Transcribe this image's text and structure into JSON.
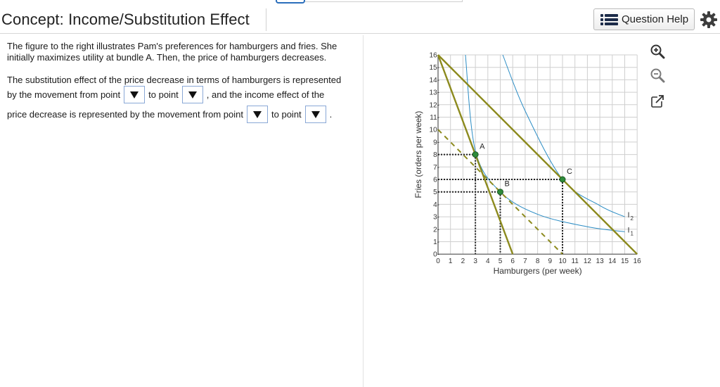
{
  "header": {
    "title": "Concept: Income/Substitution Effect",
    "help_label": "Question Help"
  },
  "icons": {
    "help": "list-icon",
    "settings": "gear-icon",
    "zoom_in": "zoom-in-icon",
    "zoom_out": "zoom-out-icon",
    "popout": "popout-icon"
  },
  "question": {
    "intro": "The figure to the right illustrates Pam's preferences for hamburgers and fries. She initially maximizes utility at bundle A. Then, the price of hamburgers decreases.",
    "s1_a": "The substitution effect of the price decrease in terms of hamburgers is represented",
    "s1_b": "by the movement from point",
    "to_point": "to point",
    "s1_c": ", and the income effect of the",
    "s2_a": "price decrease is represented by the movement from point",
    "period": "."
  },
  "dropdowns": [
    {
      "selected": ""
    },
    {
      "selected": ""
    },
    {
      "selected": ""
    },
    {
      "selected": ""
    }
  ],
  "colors": {
    "budget_line": "#8c8a1e",
    "indifference_curve": "#2a8cc4",
    "point": "#2e8b3a",
    "grid": "#cfcfcf",
    "dropdown_border": "#8aa8d6"
  },
  "chart_data": {
    "type": "line",
    "xlabel": "Hamburgers (per week)",
    "ylabel": "Fries (orders per week)",
    "xlim": [
      0,
      16
    ],
    "ylim": [
      0,
      16
    ],
    "x_ticks": [
      "0",
      "1",
      "2",
      "3",
      "4",
      "5",
      "6",
      "7",
      "8",
      "9",
      "10",
      "11",
      "12",
      "13",
      "14",
      "15",
      "16"
    ],
    "y_ticks": [
      "0-",
      "1-",
      "2-",
      "3-",
      "4-",
      "5-",
      "6-",
      "7-",
      "8-",
      "9-",
      "10-",
      "11-",
      "12-",
      "13-",
      "14-",
      "15-",
      "16-"
    ],
    "grid": true,
    "budget_lines": [
      {
        "points": [
          [
            0,
            16
          ],
          [
            6,
            0
          ]
        ],
        "style": "solid"
      },
      {
        "points": [
          [
            0,
            16
          ],
          [
            16,
            0
          ]
        ],
        "style": "solid"
      },
      {
        "points": [
          [
            0,
            10
          ],
          [
            10,
            0
          ]
        ],
        "style": "dashed"
      }
    ],
    "indifference_curves": [
      {
        "name": "I",
        "subscript": "1",
        "points": [
          [
            2.2,
            16
          ],
          [
            3.0,
            8.3
          ],
          [
            5.0,
            5.0
          ],
          [
            8,
            3.2
          ],
          [
            12,
            2.2
          ],
          [
            15,
            1.8
          ]
        ]
      },
      {
        "name": "I",
        "subscript": "2",
        "points": [
          [
            5.2,
            16
          ],
          [
            7.0,
            11.5
          ],
          [
            10.0,
            6.0
          ],
          [
            13,
            3.9
          ],
          [
            15,
            3.0
          ]
        ]
      }
    ],
    "points": [
      {
        "label": "A",
        "x": 3,
        "y": 8
      },
      {
        "label": "B",
        "x": 5,
        "y": 5
      },
      {
        "label": "C",
        "x": 10,
        "y": 6
      }
    ]
  }
}
